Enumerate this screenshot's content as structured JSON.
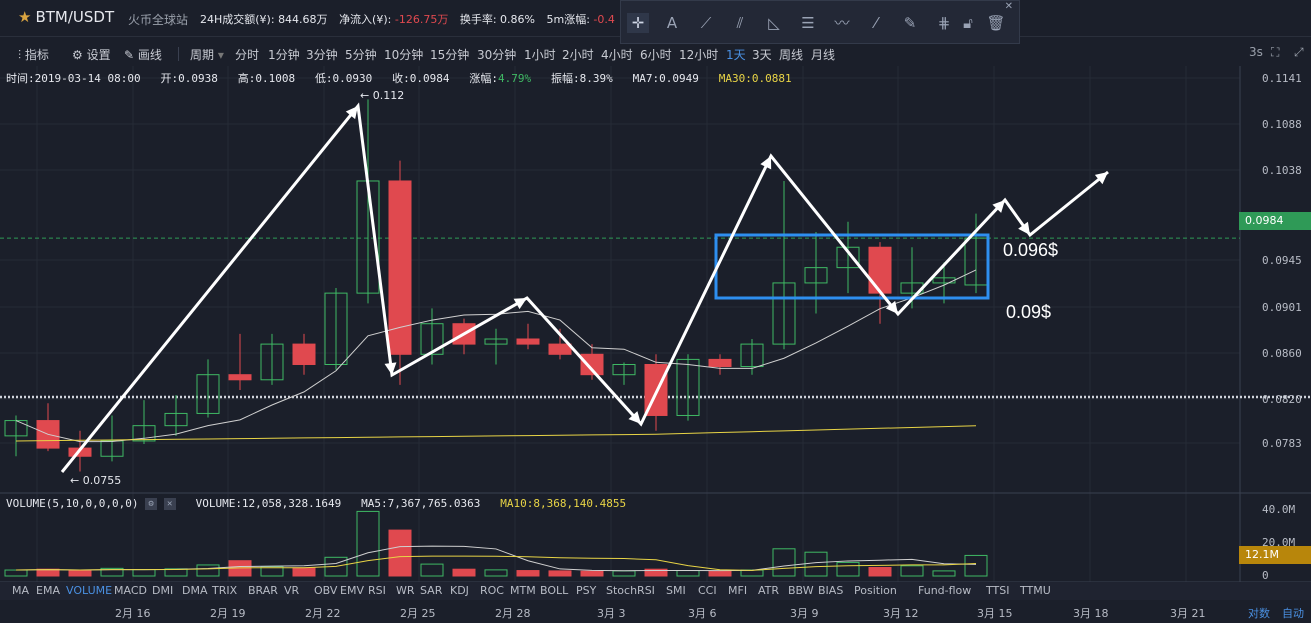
{
  "header": {
    "pair": "BTM/USDT",
    "exchange": "火币全球站",
    "stats": [
      {
        "label": "24H成交额(¥):",
        "value": "844.68万"
      },
      {
        "label": "净流入(¥):",
        "value": "-126.75万"
      },
      {
        "label": "换手率:",
        "value": "0.86%"
      },
      {
        "label": "5m涨幅:",
        "value": "-0.4"
      }
    ]
  },
  "toolbar": {
    "indicator_label": "指标",
    "settings_label": "设置",
    "draw_label": "画线",
    "period_label": "周期",
    "periods": [
      "分时",
      "1分钟",
      "3分钟",
      "5分钟",
      "10分钟",
      "15分钟",
      "30分钟",
      "1小时",
      "2小时",
      "4小时",
      "6小时",
      "12小时",
      "1天",
      "3天",
      "周线",
      "月线"
    ],
    "active_period": "1天",
    "refresh": "3s"
  },
  "info_bar": {
    "time": "时间:2019-03-14 08:00",
    "open": "开:0.0938",
    "high": "高:0.1008",
    "low": "低:0.0930",
    "close": "收:0.0984",
    "change_label": "涨幅:",
    "change_value": "4.79%",
    "amplitude": "振幅:8.39%",
    "ma7": "MA7:0.0949",
    "ma30": "MA30:0.0881"
  },
  "volume_bar": {
    "title": "VOLUME(5,10,0,0,0,0)",
    "volume": "VOLUME:12,058,328.1649",
    "ma5": "MA5:7,367,765.0363",
    "ma10": "MA10:8,368,140.4855"
  },
  "price_axis": [
    "0.1141",
    "0.1088",
    "0.1038",
    "0.0945",
    "0.0901",
    "0.0860",
    "0.0820",
    "0.0783"
  ],
  "current_price": "0.0984",
  "volume_axis": [
    "40.0M",
    "20.0M",
    "0"
  ],
  "current_volume": "12.1M",
  "max_label": "← 0.112",
  "min_label": "← 0.0755",
  "annotations": {
    "upper": "0.096$",
    "lower": "0.09$"
  },
  "indicators": [
    "MA",
    "EMA",
    "VOLUME",
    "MACD",
    "DMI",
    "DMA",
    "TRIX",
    "BRAR",
    "VR",
    "OBV",
    "EMV",
    "RSI",
    "WR",
    "SAR",
    "KDJ",
    "ROC",
    "MTM",
    "BOLL",
    "PSY",
    "StochRSI",
    "SMI",
    "CCI",
    "MFI",
    "ATR",
    "BBW",
    "BIAS",
    "Position",
    "Fund-flow",
    "TTSI",
    "TTMU"
  ],
  "active_indicator": "VOLUME",
  "dates": [
    "2月 16",
    "2月 19",
    "2月 22",
    "2月 25",
    "2月 28",
    "3月 3",
    "3月 6",
    "3月 9",
    "3月 12",
    "3月 15",
    "3月 18",
    "3月 21"
  ],
  "bottom_right": [
    "对数",
    "自动"
  ],
  "colors": {
    "up": "#3fb964",
    "down": "#e0494f",
    "accent": "#4a90e2",
    "ma30": "#e8d446",
    "ma7": "#d0d0d0"
  },
  "chart_data": {
    "type": "candlestick",
    "candles": [
      {
        "o": 0.079,
        "h": 0.081,
        "l": 0.077,
        "c": 0.0805
      },
      {
        "o": 0.0805,
        "h": 0.0822,
        "l": 0.0775,
        "c": 0.0778
      },
      {
        "o": 0.0778,
        "h": 0.0795,
        "l": 0.0755,
        "c": 0.077
      },
      {
        "o": 0.077,
        "h": 0.081,
        "l": 0.0765,
        "c": 0.0785
      },
      {
        "o": 0.0785,
        "h": 0.0825,
        "l": 0.0782,
        "c": 0.08
      },
      {
        "o": 0.08,
        "h": 0.083,
        "l": 0.079,
        "c": 0.0812
      },
      {
        "o": 0.0812,
        "h": 0.0865,
        "l": 0.0808,
        "c": 0.085
      },
      {
        "o": 0.085,
        "h": 0.089,
        "l": 0.0835,
        "c": 0.0845
      },
      {
        "o": 0.0845,
        "h": 0.089,
        "l": 0.084,
        "c": 0.088
      },
      {
        "o": 0.088,
        "h": 0.089,
        "l": 0.085,
        "c": 0.086
      },
      {
        "o": 0.086,
        "h": 0.0935,
        "l": 0.0855,
        "c": 0.093
      },
      {
        "o": 0.093,
        "h": 0.112,
        "l": 0.092,
        "c": 0.104
      },
      {
        "o": 0.104,
        "h": 0.106,
        "l": 0.084,
        "c": 0.087
      },
      {
        "o": 0.087,
        "h": 0.0915,
        "l": 0.086,
        "c": 0.09
      },
      {
        "o": 0.09,
        "h": 0.0905,
        "l": 0.087,
        "c": 0.088
      },
      {
        "o": 0.088,
        "h": 0.0895,
        "l": 0.086,
        "c": 0.0885
      },
      {
        "o": 0.0885,
        "h": 0.09,
        "l": 0.0875,
        "c": 0.088
      },
      {
        "o": 0.088,
        "h": 0.0895,
        "l": 0.0865,
        "c": 0.087
      },
      {
        "o": 0.087,
        "h": 0.088,
        "l": 0.0845,
        "c": 0.085
      },
      {
        "o": 0.085,
        "h": 0.0862,
        "l": 0.084,
        "c": 0.086
      },
      {
        "o": 0.086,
        "h": 0.087,
        "l": 0.0795,
        "c": 0.081
      },
      {
        "o": 0.081,
        "h": 0.087,
        "l": 0.0805,
        "c": 0.0865
      },
      {
        "o": 0.0865,
        "h": 0.087,
        "l": 0.085,
        "c": 0.0858
      },
      {
        "o": 0.0858,
        "h": 0.0885,
        "l": 0.085,
        "c": 0.088
      },
      {
        "o": 0.088,
        "h": 0.104,
        "l": 0.0875,
        "c": 0.094
      },
      {
        "o": 0.094,
        "h": 0.099,
        "l": 0.091,
        "c": 0.0955
      },
      {
        "o": 0.0955,
        "h": 0.1,
        "l": 0.093,
        "c": 0.0975
      },
      {
        "o": 0.0975,
        "h": 0.098,
        "l": 0.09,
        "c": 0.093
      },
      {
        "o": 0.093,
        "h": 0.0975,
        "l": 0.0915,
        "c": 0.094
      },
      {
        "o": 0.094,
        "h": 0.096,
        "l": 0.092,
        "c": 0.0945
      },
      {
        "o": 0.0938,
        "h": 0.1008,
        "l": 0.093,
        "c": 0.0984
      }
    ],
    "volumes": [
      3.5,
      4.0,
      3.0,
      4.5,
      3.8,
      4.2,
      6.5,
      9.0,
      5.5,
      4.8,
      11.0,
      38.0,
      27.0,
      7.0,
      4.0,
      3.6,
      3.2,
      3.0,
      2.8,
      3.0,
      4.0,
      3.2,
      2.8,
      3.5,
      16.0,
      14.0,
      8.0,
      5.0,
      6.0,
      3.0,
      12.1
    ],
    "ylim": [
      0.076,
      0.116
    ]
  }
}
